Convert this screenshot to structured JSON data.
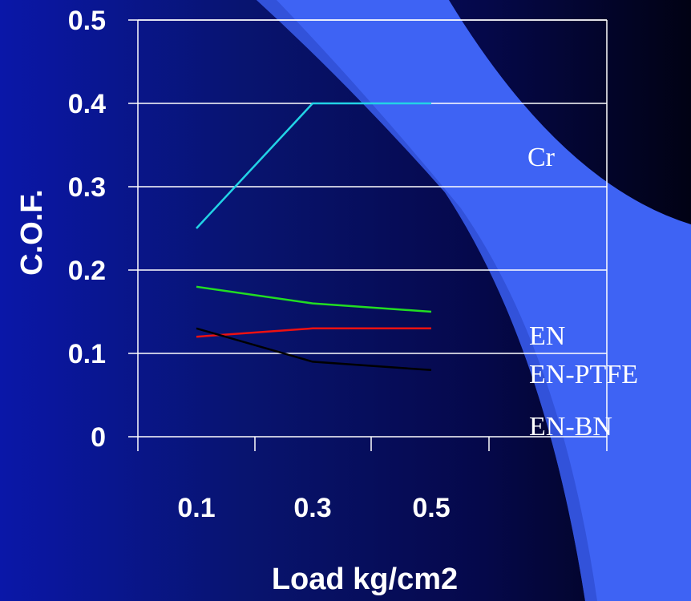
{
  "chart_data": {
    "type": "line",
    "title": "",
    "xlabel": "Load kg/cm2",
    "ylabel": "C.O.F.",
    "categories": [
      "0.1",
      "0.3",
      "0.5"
    ],
    "y_ticks": [
      "0",
      "0.1",
      "0.2",
      "0.3",
      "0.4",
      "0.5"
    ],
    "ylim": [
      0,
      0.5
    ],
    "grid": true,
    "legend_placement": "right",
    "series": [
      {
        "name": "Cr",
        "values": [
          0.25,
          0.4,
          0.4
        ],
        "color": "#22d3e6"
      },
      {
        "name": "EN",
        "values": [
          0.18,
          0.16,
          0.15
        ],
        "color": "#22dd22"
      },
      {
        "name": "EN-PTFE",
        "values": [
          0.12,
          0.13,
          0.13
        ],
        "color": "#ee1111"
      },
      {
        "name": "EN-BN",
        "values": [
          0.13,
          0.09,
          0.08
        ],
        "color": "#000000"
      }
    ]
  }
}
